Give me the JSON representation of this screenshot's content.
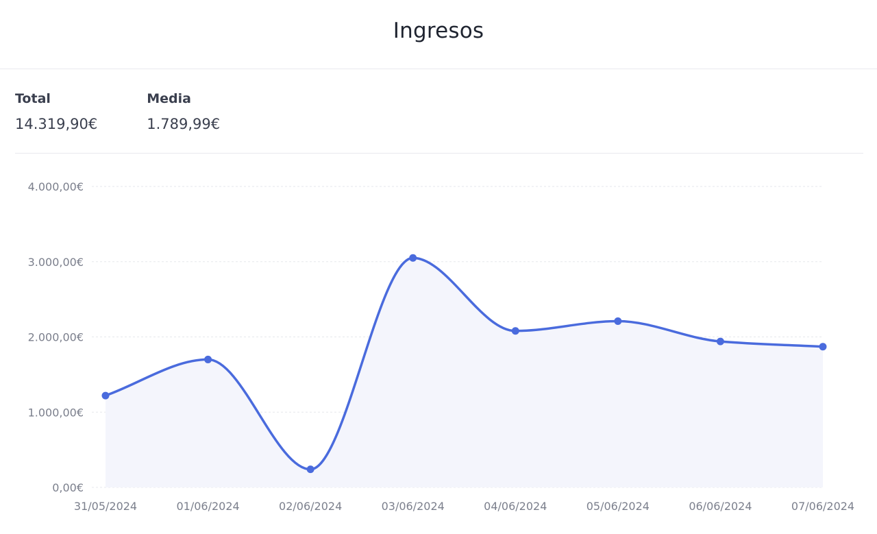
{
  "card": {
    "title": "Ingresos"
  },
  "stats": [
    {
      "label": "Total",
      "value": "14.319,90€"
    },
    {
      "label": "Media",
      "value": "1.789,99€"
    }
  ],
  "colors": {
    "line": "#4a6bdd",
    "area": "#f4f5fc",
    "grid": "#e6e7ec",
    "tick_text": "#7b7f8c"
  },
  "chart_data": {
    "type": "area",
    "title": "",
    "xlabel": "",
    "ylabel": "",
    "categories": [
      "31/05/2024",
      "01/06/2024",
      "02/06/2024",
      "03/06/2024",
      "04/06/2024",
      "05/06/2024",
      "06/06/2024",
      "07/06/2024"
    ],
    "series": [
      {
        "values": [
          1220,
          1700,
          240,
          3050,
          2080,
          2210,
          1940,
          1870
        ]
      }
    ],
    "ylim": [
      0,
      4000
    ],
    "y_ticks": [
      0,
      1000,
      2000,
      3000,
      4000
    ],
    "y_tick_labels": [
      "0,00€",
      "1.000,00€",
      "2.000,00€",
      "3.000,00€",
      "4.000,00€"
    ],
    "grid": true,
    "smooth": true,
    "markers": true
  }
}
